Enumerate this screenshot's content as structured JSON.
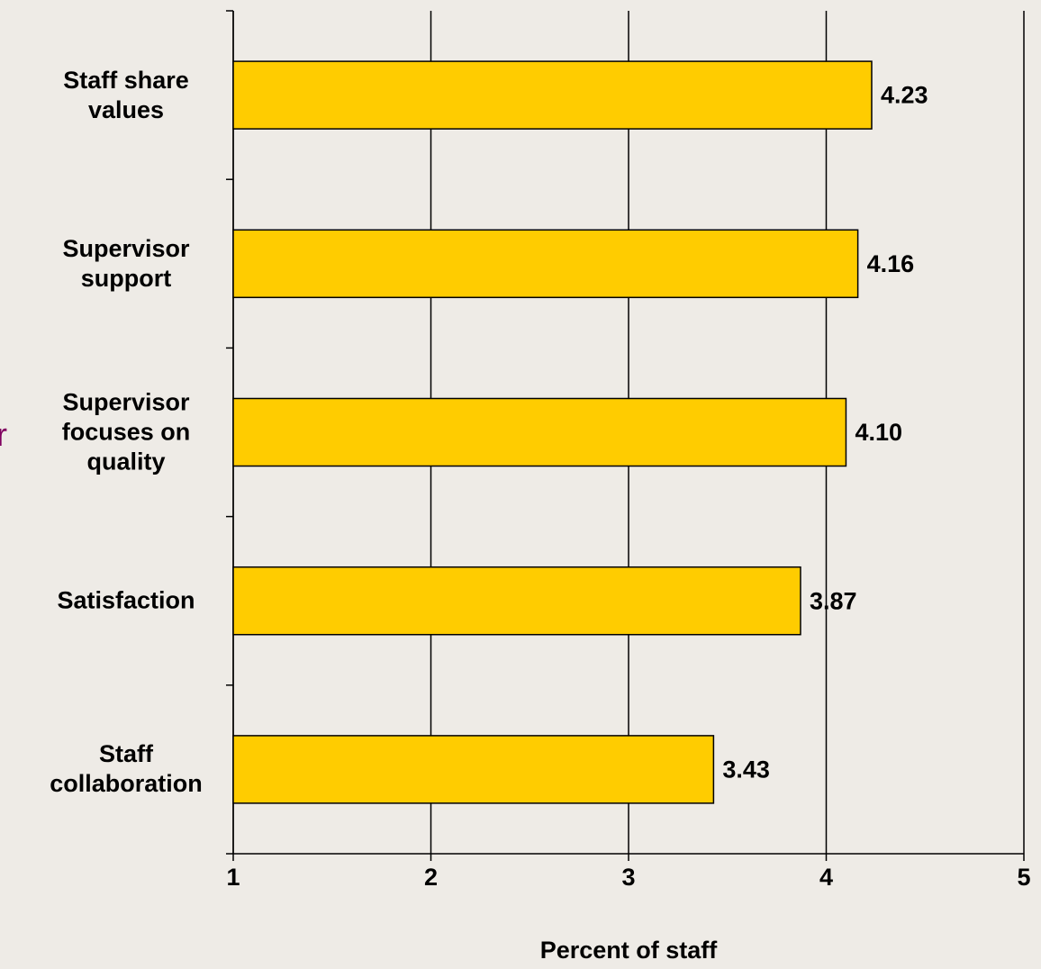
{
  "chart_data": {
    "type": "bar",
    "orientation": "horizontal",
    "categories": [
      "Staff share values",
      "Supervisor support",
      "Supervisor focuses on quality",
      "Satisfaction",
      "Staff collaboration"
    ],
    "values": [
      4.23,
      4.16,
      4.1,
      3.87,
      3.43
    ],
    "value_labels": [
      "4.23",
      "4.16",
      "4.10",
      "3.87",
      "3.43"
    ],
    "color": "#FFCC00",
    "xlim": [
      1,
      5
    ],
    "xticks": [
      1,
      2,
      3,
      4,
      5
    ],
    "grid": true,
    "x_label": "Percent of staff",
    "annotation": "r"
  }
}
